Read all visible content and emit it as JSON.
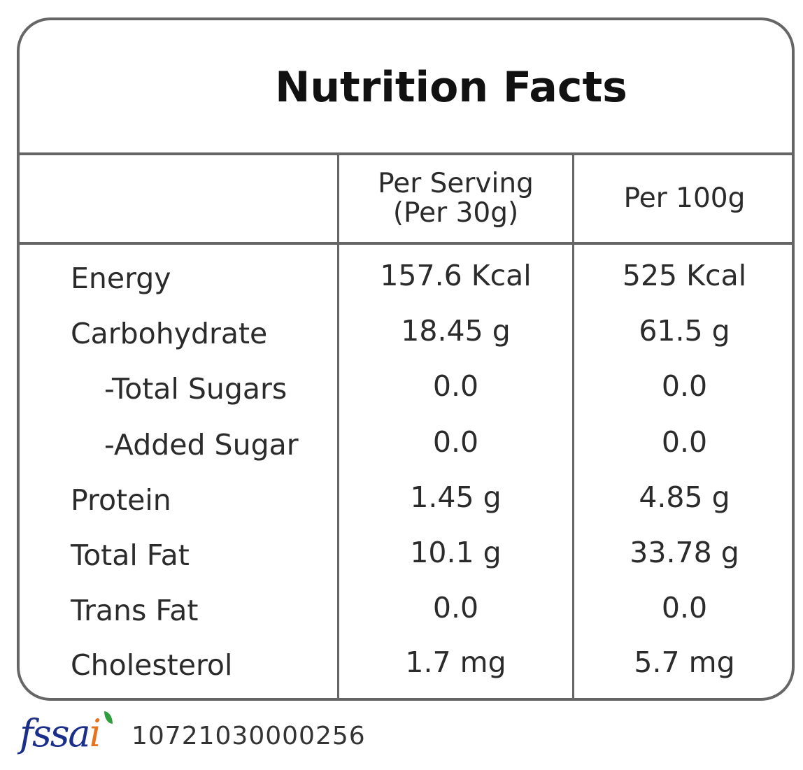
{
  "title": "Nutrition Facts",
  "headers": {
    "blank": "",
    "per_serving_line1": "Per Serving",
    "per_serving_line2": "(Per 30g)",
    "per_100g": "Per 100g"
  },
  "rows": [
    {
      "label": "Energy",
      "indent": false,
      "per_serving": "157.6 Kcal",
      "per_100g": "525 Kcal"
    },
    {
      "label": "Carbohydrate",
      "indent": false,
      "per_serving": "18.45 g",
      "per_100g": "61.5 g"
    },
    {
      "label": "-Total Sugars",
      "indent": true,
      "per_serving": "0.0",
      "per_100g": "0.0"
    },
    {
      "label": "-Added Sugar",
      "indent": true,
      "per_serving": "0.0",
      "per_100g": "0.0"
    },
    {
      "label": "Protein",
      "indent": false,
      "per_serving": "1.45 g",
      "per_100g": "4.85 g"
    },
    {
      "label": "Total Fat",
      "indent": false,
      "per_serving": "10.1 g",
      "per_100g": "33.78 g"
    },
    {
      "label": "Trans Fat",
      "indent": false,
      "per_serving": "0.0",
      "per_100g": "0.0"
    },
    {
      "label": "Cholesterol",
      "indent": false,
      "per_serving": "1.7 mg",
      "per_100g": "5.7 mg"
    }
  ],
  "footer": {
    "logo_text": "fssai",
    "license_number": "10721030000256"
  },
  "colors": {
    "border": "#666666",
    "text": "#2b2b2b",
    "logo_blue": "#1b2f8a",
    "logo_orange": "#e8731e",
    "logo_green": "#2f9e3f"
  }
}
